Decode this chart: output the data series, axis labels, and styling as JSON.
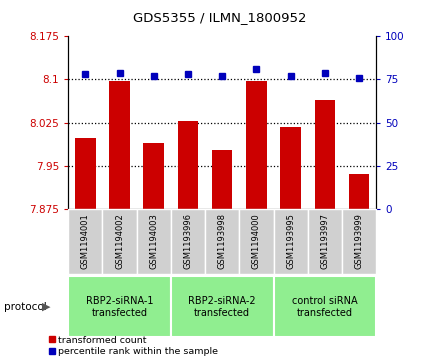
{
  "title": "GDS5355 / ILMN_1800952",
  "samples": [
    "GSM1194001",
    "GSM1194002",
    "GSM1194003",
    "GSM1193996",
    "GSM1193998",
    "GSM1194000",
    "GSM1193995",
    "GSM1193997",
    "GSM1193999"
  ],
  "bar_values": [
    7.998,
    8.097,
    7.99,
    8.028,
    7.978,
    8.097,
    8.017,
    8.065,
    7.935
  ],
  "percentile_values": [
    78,
    79,
    77,
    78,
    77,
    81,
    77,
    79,
    76
  ],
  "ymin": 7.875,
  "ymax": 8.175,
  "yticks": [
    7.875,
    7.95,
    8.025,
    8.1,
    8.175
  ],
  "right_yticks": [
    0,
    25,
    50,
    75,
    100
  ],
  "bar_color": "#cc0000",
  "blue_color": "#0000bb",
  "bg_plot": "#ffffff",
  "bg_labels": "#d0d0d0",
  "bg_protocol": "#90ee90",
  "protocol_labels": [
    "RBP2-siRNA-1\ntransfected",
    "RBP2-siRNA-2\ntransfected",
    "control siRNA\ntransfected"
  ],
  "protocol_groups": [
    3,
    3,
    3
  ],
  "legend_bar_label": "transformed count",
  "legend_dot_label": "percentile rank within the sample"
}
